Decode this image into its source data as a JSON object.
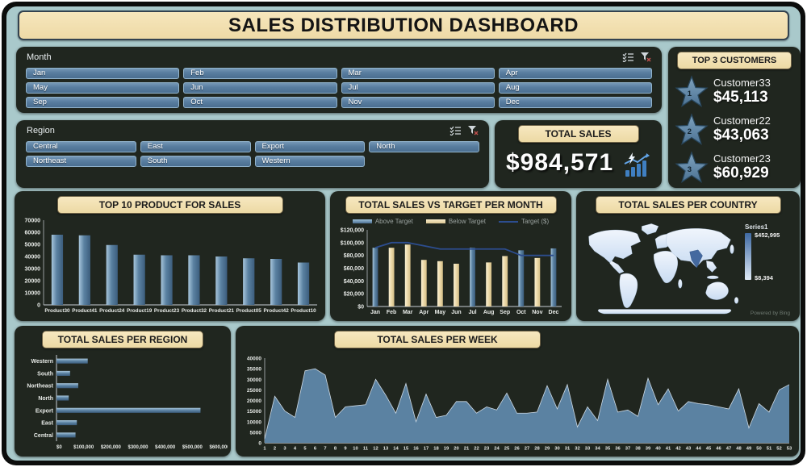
{
  "title": "SALES DISTRIBUTION DASHBOARD",
  "colors": {
    "background_frame": "#a9c9cb",
    "panel": "#20261f",
    "cream": "#eedaa6",
    "steel_blue": "#5b82a2",
    "steel_light": "#9dc0da",
    "steel_dark": "#3f6080",
    "cream_bar": "#ecd9a8",
    "target_line": "#2c4d8f",
    "text": "#f0f0f0"
  },
  "slicers": {
    "month": {
      "label": "Month",
      "items": [
        "Jan",
        "Feb",
        "Mar",
        "Apr",
        "May",
        "Jun",
        "Jul",
        "Aug",
        "Sep",
        "Oct",
        "Nov",
        "Dec"
      ]
    },
    "region": {
      "label": "Region",
      "items": [
        "Central",
        "East",
        "Export",
        "North",
        "Northeast",
        "South",
        "Western"
      ]
    }
  },
  "total_sales": {
    "label": "TOTAL SALES",
    "value": "$984,571"
  },
  "top_customers": {
    "title": "TOP 3  CUSTOMERS",
    "items": [
      {
        "rank": "1",
        "name": "Customer33",
        "value": "$45,113"
      },
      {
        "rank": "2",
        "name": "Customer22",
        "value": "$43,063"
      },
      {
        "rank": "3",
        "name": "Customer23",
        "value": "$60,929"
      }
    ]
  },
  "chart_data": [
    {
      "id": "top10",
      "type": "bar",
      "title": "TOP 10 PRODUCT FOR SALES",
      "categories": [
        "Product30",
        "Product41",
        "Product24",
        "Product19",
        "Product23",
        "Product32",
        "Product21",
        "Product05",
        "Product42",
        "Product10"
      ],
      "values": [
        58000,
        57500,
        49500,
        41500,
        41000,
        41000,
        40000,
        38500,
        38000,
        35000
      ],
      "ylim": [
        0,
        70000
      ],
      "yticks": [
        0,
        10000,
        20000,
        30000,
        40000,
        50000,
        60000,
        70000
      ],
      "grid": false,
      "legend": "none"
    },
    {
      "id": "vs_target",
      "type": "combo-bar-line",
      "title": "TOTAL SALES VS TARGET PER MONTH",
      "categories": [
        "Jan",
        "Feb",
        "Mar",
        "Apr",
        "May",
        "Jun",
        "Jul",
        "Aug",
        "Sep",
        "Oct",
        "Nov",
        "Dec"
      ],
      "series": [
        {
          "name": "Above Target",
          "type": "bar",
          "values": [
            92000,
            null,
            null,
            null,
            null,
            null,
            92000,
            null,
            null,
            88000,
            null,
            91000
          ]
        },
        {
          "name": "Below Target",
          "type": "bar",
          "values": [
            null,
            92000,
            97000,
            73000,
            71000,
            67000,
            null,
            69000,
            79000,
            null,
            76000,
            null
          ]
        },
        {
          "name": "Target ($)",
          "type": "line",
          "values": [
            92000,
            100000,
            100000,
            95000,
            90000,
            90000,
            90000,
            90000,
            90000,
            80000,
            80000,
            80000
          ]
        }
      ],
      "ylim": [
        0,
        120000
      ],
      "ytick_labels": [
        "$0",
        "$20,000",
        "$40,000",
        "$60,000",
        "$80,000",
        "$100,000",
        "$120,000"
      ],
      "legend": "top"
    },
    {
      "id": "country",
      "type": "map",
      "title": "TOTAL SALES PER COUNTRY",
      "legend_title": "Series1",
      "legend_max": "$452,995",
      "legend_min": "$8,394",
      "highlighted_country": "India",
      "attribution": "Powered by Bing"
    },
    {
      "id": "region",
      "type": "hbar",
      "title": "TOTAL SALES PER REGION",
      "categories": [
        "Western",
        "South",
        "Northeast",
        "North",
        "Export",
        "East",
        "Central"
      ],
      "values": [
        115000,
        50000,
        80000,
        45000,
        530000,
        75000,
        70000
      ],
      "xlim": [
        0,
        600000
      ],
      "xtick_labels": [
        "$0",
        "$100,000",
        "$200,000",
        "$300,000",
        "$400,000",
        "$500,000",
        "$600,000"
      ],
      "legend": "none"
    },
    {
      "id": "week",
      "type": "area",
      "title": "TOTAL SALES PER WEEK",
      "x": [
        1,
        2,
        3,
        4,
        5,
        6,
        7,
        8,
        9,
        10,
        11,
        12,
        13,
        14,
        15,
        16,
        17,
        18,
        19,
        20,
        21,
        22,
        23,
        24,
        25,
        26,
        27,
        28,
        29,
        30,
        31,
        32,
        33,
        34,
        35,
        36,
        37,
        38,
        39,
        40,
        41,
        42,
        43,
        44,
        45,
        46,
        47,
        48,
        49,
        50,
        51,
        52,
        53
      ],
      "values": [
        2000,
        22000,
        15000,
        12000,
        34000,
        35000,
        32000,
        12000,
        17000,
        17500,
        18000,
        30000,
        22500,
        14000,
        28000,
        10000,
        23000,
        12000,
        13000,
        19500,
        19500,
        14000,
        17000,
        15500,
        23500,
        14000,
        14000,
        14500,
        27000,
        16000,
        27500,
        7500,
        17000,
        10500,
        30000,
        14500,
        15500,
        12500,
        30500,
        18000,
        25500,
        15000,
        19500,
        18500,
        18000,
        17000,
        16000,
        25500,
        7000,
        18500,
        14500,
        25000,
        27500
      ],
      "ylim": [
        0,
        40000
      ],
      "yticks": [
        0,
        5000,
        10000,
        15000,
        20000,
        25000,
        30000,
        35000,
        40000
      ],
      "legend": "none"
    }
  ]
}
